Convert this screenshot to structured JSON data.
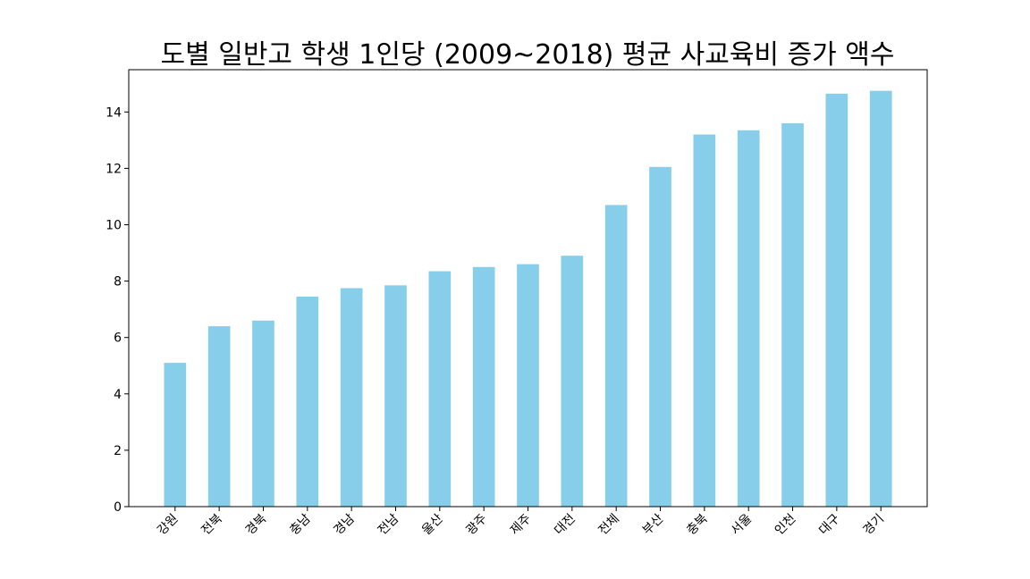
{
  "chart_data": {
    "type": "bar",
    "title": "도별 일반고 학생 1인당 (2009~2018) 평균 사교육비 증가 액수",
    "xlabel": "",
    "ylabel": "",
    "categories": [
      "강원",
      "전북",
      "경북",
      "충남",
      "경남",
      "전남",
      "울산",
      "광주",
      "제주",
      "대전",
      "전체",
      "부산",
      "충북",
      "서울",
      "인천",
      "대구",
      "경기"
    ],
    "values": [
      5.1,
      6.4,
      6.6,
      7.45,
      7.75,
      7.85,
      8.35,
      8.5,
      8.6,
      8.9,
      10.7,
      12.05,
      13.2,
      13.35,
      13.6,
      14.65,
      14.75
    ],
    "ylim": [
      0,
      15.5
    ],
    "yticks": [
      0,
      2,
      4,
      6,
      8,
      10,
      12,
      14
    ],
    "bar_color": "#87ceeb",
    "grid": false,
    "legend": "none",
    "xtick_rotation": 45
  }
}
